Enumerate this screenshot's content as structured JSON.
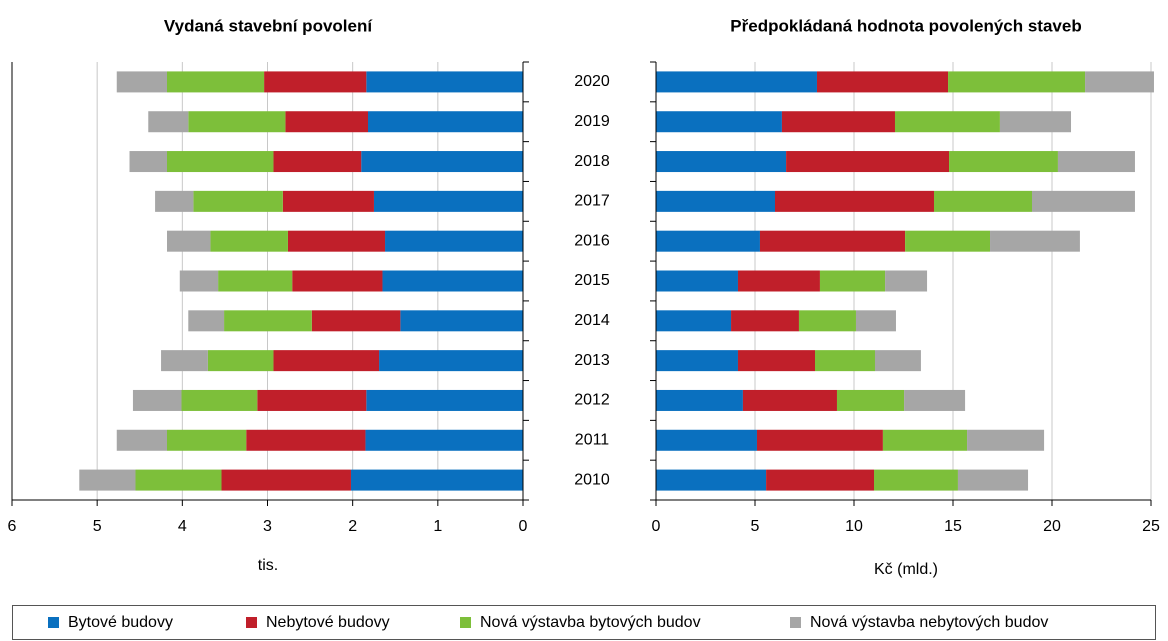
{
  "chart_data": [
    {
      "type": "bar",
      "title": "Vydaná stavební povolení",
      "xlabel": "tis.",
      "xlim": [
        6,
        0
      ],
      "xticks": [
        6,
        5,
        4,
        3,
        2,
        1,
        0
      ],
      "grid": true,
      "series": [
        {
          "name": "Bytové budovy",
          "color": "#0a70bf",
          "values": [
            2.02,
            1.85,
            1.84,
            1.69,
            1.44,
            1.65,
            1.62,
            1.75,
            1.9,
            1.82,
            1.84
          ]
        },
        {
          "name": "Nebytové budovy",
          "color": "#c01f2a",
          "values": [
            1.52,
            1.4,
            1.28,
            1.24,
            1.04,
            1.06,
            1.14,
            1.07,
            1.03,
            0.97,
            1.2
          ]
        },
        {
          "name": "Nová výstavba bytových budov",
          "color": "#7dbf3a",
          "values": [
            1.01,
            0.93,
            0.89,
            0.77,
            1.03,
            0.87,
            0.91,
            1.05,
            1.25,
            1.14,
            1.14
          ]
        },
        {
          "name": "Nová výstavba nebytových budov",
          "color": "#a6a6a6",
          "values": [
            0.66,
            0.59,
            0.57,
            0.55,
            0.42,
            0.45,
            0.51,
            0.45,
            0.44,
            0.47,
            0.59
          ]
        }
      ]
    },
    {
      "type": "bar",
      "title": "Předpokládaná hodnota povolených staveb",
      "xlabel": "Kč (mld.)",
      "categories": [
        "2010",
        "2011",
        "2012",
        "2013",
        "2014",
        "2015",
        "2016",
        "2017",
        "2018",
        "2019",
        "2020"
      ],
      "xlim": [
        0,
        25
      ],
      "xticks": [
        0,
        5,
        10,
        15,
        20,
        25
      ],
      "grid": true,
      "series": [
        {
          "color": "#0a70bf",
          "values": [
            5.56,
            5.1,
            4.39,
            4.14,
            3.79,
            4.14,
            5.25,
            6.01,
            6.57,
            6.36,
            8.13
          ]
        },
        {
          "color": "#c01f2a",
          "values": [
            5.45,
            6.36,
            4.75,
            3.89,
            3.43,
            4.14,
            7.33,
            8.03,
            8.23,
            5.71,
            6.62
          ]
        },
        {
          "color": "#7dbf3a",
          "values": [
            4.24,
            4.25,
            3.39,
            3.03,
            2.88,
            3.29,
            4.29,
            4.95,
            5.5,
            5.3,
            6.92
          ]
        },
        {
          "color": "#a6a6a6",
          "values": [
            3.54,
            3.89,
            3.08,
            2.32,
            2.02,
            2.12,
            4.54,
            5.2,
            3.89,
            3.59,
            3.48
          ]
        }
      ]
    }
  ]
}
